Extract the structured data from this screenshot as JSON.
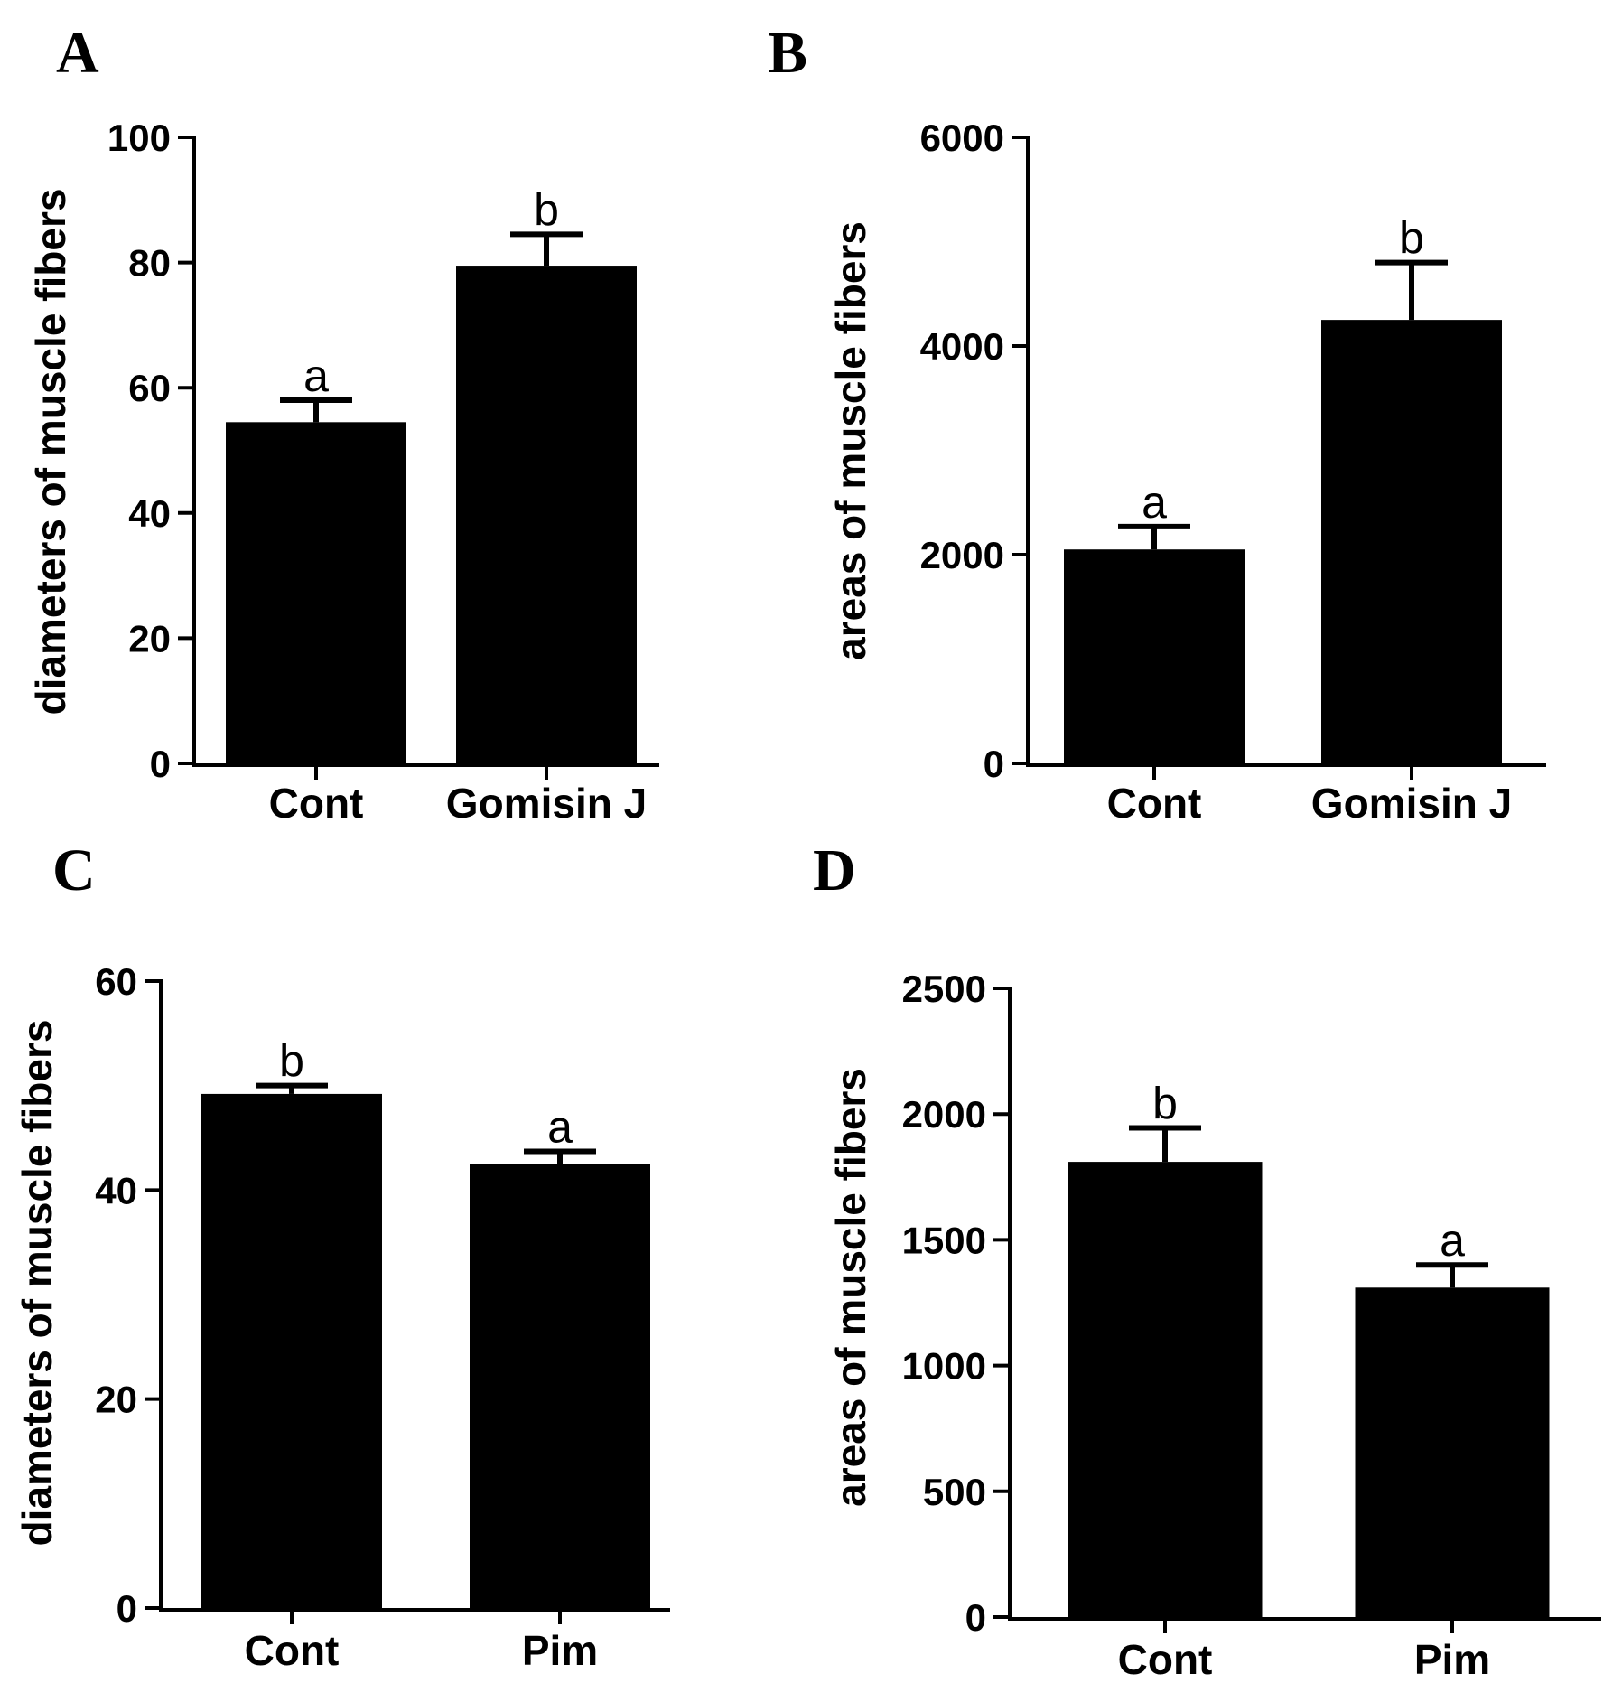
{
  "chart_data": [
    {
      "panel": "A",
      "type": "bar",
      "ylabel": "diameters of muscle fibers",
      "xlabel": "",
      "categories": [
        "Cont",
        "Gomisin J"
      ],
      "values": [
        54.5,
        79.5
      ],
      "errors": [
        3.5,
        5
      ],
      "significance": [
        "a",
        "b"
      ],
      "ylim": [
        0,
        100
      ],
      "yticks": [
        0,
        20,
        40,
        60,
        80,
        100
      ],
      "ytick_labels": [
        "0",
        "20",
        "40",
        "60",
        "80",
        "100"
      ]
    },
    {
      "panel": "B",
      "type": "bar",
      "ylabel": "areas of muscle fibers",
      "xlabel": "",
      "categories": [
        "Cont",
        "Gomisin J"
      ],
      "values": [
        2050,
        4250
      ],
      "errors": [
        220,
        550
      ],
      "significance": [
        "a",
        "b"
      ],
      "ylim": [
        0,
        6000
      ],
      "yticks": [
        0,
        2000,
        4000,
        6000
      ],
      "ytick_labels": [
        "0",
        "2000",
        "4000",
        "6000"
      ]
    },
    {
      "panel": "C",
      "type": "bar",
      "ylabel": "diameters of muscle fibers",
      "xlabel": "",
      "categories": [
        "Cont",
        "Pim"
      ],
      "values": [
        49.2,
        42.5
      ],
      "errors": [
        0.8,
        1.2
      ],
      "significance": [
        "b",
        "a"
      ],
      "ylim": [
        0,
        60
      ],
      "yticks": [
        0,
        20,
        40,
        60
      ],
      "ytick_labels": [
        "0",
        "20",
        "40",
        "60"
      ]
    },
    {
      "panel": "D",
      "type": "bar",
      "ylabel": "areas of muscle fibers",
      "xlabel": "",
      "categories": [
        "Cont",
        "Pim"
      ],
      "values": [
        1810,
        1310
      ],
      "errors": [
        135,
        90
      ],
      "significance": [
        "b",
        "a"
      ],
      "ylim": [
        0,
        2500
      ],
      "yticks": [
        0,
        500,
        1000,
        1500,
        2000,
        2500
      ],
      "ytick_labels": [
        "0",
        "500",
        "1000",
        "1500",
        "2000",
        "2500"
      ]
    }
  ],
  "colors": {
    "bar": "#000000",
    "axis": "#000000",
    "background": "#ffffff"
  }
}
